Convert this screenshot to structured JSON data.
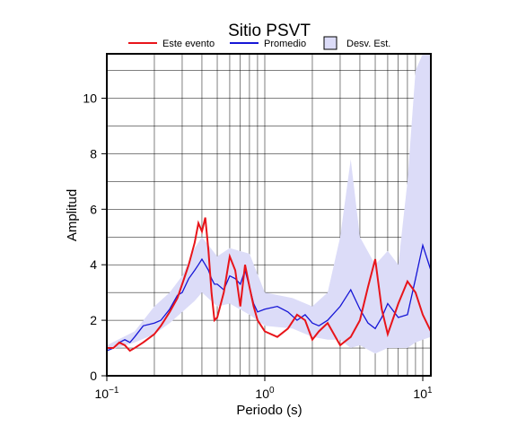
{
  "chart_data": {
    "type": "line",
    "title": "Sitio PSVT",
    "x_label": "Periodo (s)",
    "y_label": "Amplitud",
    "x_scale": "log",
    "xlim": [
      0.1,
      11.25
    ],
    "ylim": [
      0,
      11.6
    ],
    "xticks": [
      {
        "value": 0.1,
        "label": "10",
        "exponent": "−1"
      },
      {
        "value": 1,
        "label": "10",
        "exponent": "0"
      },
      {
        "value": 10,
        "label": "10",
        "exponent": "1"
      }
    ],
    "minor_xticks": [
      0.2,
      0.3,
      0.4,
      0.5,
      0.6,
      0.7,
      0.8,
      0.9,
      2,
      3,
      4,
      5,
      6,
      7,
      8,
      9
    ],
    "yticks": [
      0,
      2,
      4,
      6,
      8,
      10
    ],
    "minor_yticks": [
      1,
      3,
      5,
      7,
      9,
      11
    ],
    "grid": true,
    "x": [
      0.1,
      0.11,
      0.12,
      0.13,
      0.14,
      0.15,
      0.17,
      0.2,
      0.22,
      0.25,
      0.28,
      0.3,
      0.33,
      0.36,
      0.38,
      0.4,
      0.42,
      0.44,
      0.46,
      0.48,
      0.5,
      0.55,
      0.6,
      0.65,
      0.7,
      0.75,
      0.8,
      0.85,
      0.9,
      1.0,
      1.2,
      1.4,
      1.6,
      1.8,
      2.0,
      2.2,
      2.5,
      3.0,
      3.5,
      4.0,
      4.5,
      5.0,
      5.5,
      6.0,
      7.0,
      8.0,
      9.0,
      10,
      11.25
    ],
    "series": [
      {
        "name": "Este evento",
        "color": "#e8141a",
        "width": 2,
        "values": [
          1.0,
          1.0,
          1.2,
          1.1,
          0.9,
          1.0,
          1.2,
          1.5,
          1.8,
          2.3,
          2.8,
          3.3,
          4.0,
          4.8,
          5.5,
          5.2,
          5.7,
          4.5,
          3.0,
          2.0,
          2.1,
          3.0,
          4.3,
          3.8,
          2.5,
          4.0,
          3.2,
          2.5,
          2.0,
          1.6,
          1.4,
          1.7,
          2.2,
          2.0,
          1.3,
          1.6,
          1.9,
          1.1,
          1.4,
          2.0,
          3.2,
          4.2,
          2.4,
          1.5,
          2.6,
          3.4,
          3.0,
          2.2,
          1.6
        ]
      },
      {
        "name": "Promedio",
        "color": "#1616d6",
        "width": 1.3,
        "values": [
          0.9,
          1.0,
          1.2,
          1.3,
          1.2,
          1.4,
          1.8,
          1.9,
          2.0,
          2.4,
          2.9,
          3.0,
          3.5,
          3.8,
          4.0,
          4.2,
          4.0,
          3.8,
          3.5,
          3.3,
          3.3,
          3.1,
          3.6,
          3.5,
          3.3,
          3.8,
          3.2,
          2.6,
          2.3,
          2.4,
          2.5,
          2.3,
          2.0,
          2.2,
          1.9,
          1.8,
          2.0,
          2.5,
          3.1,
          2.4,
          1.9,
          1.7,
          2.1,
          2.6,
          2.1,
          2.2,
          3.5,
          4.7,
          3.8
        ]
      }
    ],
    "band": {
      "name": "Desv. Est.",
      "color": "#dcdcf8",
      "x": [
        0.1,
        0.15,
        0.2,
        0.25,
        0.3,
        0.36,
        0.4,
        0.5,
        0.6,
        0.8,
        1.0,
        1.5,
        2.0,
        2.5,
        3.0,
        3.5,
        4.0,
        5.0,
        6.0,
        7.0,
        8.0,
        9.0,
        10,
        11.25
      ],
      "upper": [
        1.1,
        1.6,
        2.5,
        3.0,
        3.6,
        4.6,
        5.0,
        4.3,
        4.6,
        4.4,
        3.0,
        2.8,
        2.5,
        3.0,
        5.0,
        7.8,
        5.0,
        4.0,
        4.5,
        4.0,
        7.0,
        11.0,
        11.6,
        11.6
      ],
      "lower": [
        0.9,
        1.2,
        1.5,
        1.9,
        2.3,
        2.7,
        3.0,
        2.5,
        2.6,
        2.2,
        1.8,
        1.7,
        1.4,
        1.3,
        1.3,
        1.0,
        1.1,
        0.8,
        1.0,
        1.0,
        1.0,
        1.2,
        1.3,
        1.4
      ]
    }
  }
}
